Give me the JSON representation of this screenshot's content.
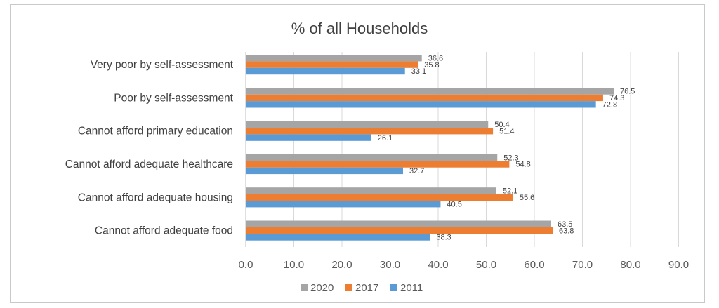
{
  "chart_data": {
    "type": "bar",
    "orientation": "horizontal",
    "title": "% of all Households",
    "categories": [
      "Very poor by self-assessment",
      "Poor by self-assessment",
      "Cannot afford primary education",
      "Cannot afford adequate healthcare",
      "Cannot afford adequate housing",
      "Cannot afford adequate food"
    ],
    "series": [
      {
        "name": "2020",
        "color": "#a5a5a5",
        "values": [
          36.6,
          76.5,
          50.4,
          52.3,
          52.1,
          63.5
        ]
      },
      {
        "name": "2017",
        "color": "#ed7d31",
        "values": [
          35.8,
          74.3,
          51.4,
          54.8,
          55.6,
          63.8
        ]
      },
      {
        "name": "2011",
        "color": "#5b9bd5",
        "values": [
          33.1,
          72.8,
          26.1,
          32.7,
          40.5,
          38.3
        ]
      }
    ],
    "xlim": [
      0,
      90
    ],
    "xticks": [
      "0.0",
      "10.0",
      "20.0",
      "30.0",
      "40.0",
      "50.0",
      "60.0",
      "70.0",
      "80.0",
      "90.0"
    ],
    "grid": "vertical",
    "legend": "bottom",
    "data_labels": true
  }
}
